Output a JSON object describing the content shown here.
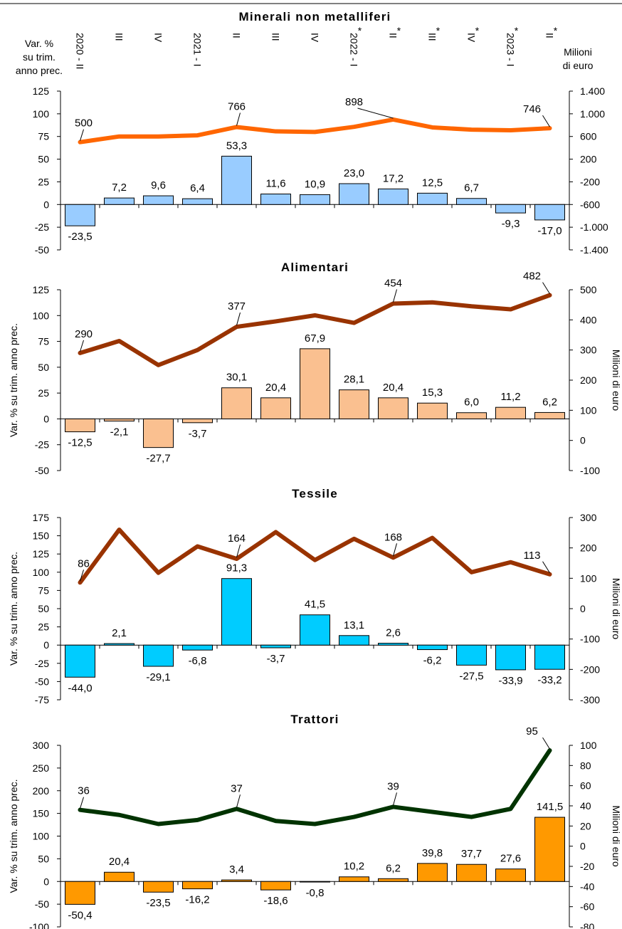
{
  "quarters": [
    {
      "label": "2020 - II",
      "star": ""
    },
    {
      "label": "III",
      "star": ""
    },
    {
      "label": "IV",
      "star": ""
    },
    {
      "label": "2021 - I",
      "star": ""
    },
    {
      "label": "II",
      "star": ""
    },
    {
      "label": "III",
      "star": ""
    },
    {
      "label": "IV",
      "star": ""
    },
    {
      "label": "2022 - I",
      "star": "*"
    },
    {
      "label": "II",
      "star": "*"
    },
    {
      "label": "III",
      "star": "*"
    },
    {
      "label": "IV",
      "star": "*"
    },
    {
      "label": "2023 - I",
      "star": "*"
    },
    {
      "label": "II",
      "star": "*"
    }
  ],
  "header": {
    "left_axis_title": [
      "Var. %",
      "su trim.",
      "anno prec."
    ],
    "right_axis_title": [
      "Milioni",
      "di euro"
    ]
  },
  "chart_data": [
    {
      "type": "bar",
      "title": "Minerali non metalliferi",
      "ylabel": "",
      "y2label": "",
      "ylim": [
        -50,
        125
      ],
      "yticks": [
        -50,
        -25,
        0,
        25,
        50,
        75,
        100,
        125
      ],
      "y2lim": [
        -1400,
        1400
      ],
      "y2ticks": [
        "1.400",
        "1.000",
        "600",
        "200",
        "-200",
        "-600",
        "-1.000",
        "-1.400"
      ],
      "bar_color": "#99CCFF",
      "line_color": "#FF6600",
      "bars": [
        -23.5,
        7.2,
        9.6,
        6.4,
        53.3,
        11.6,
        10.9,
        23.0,
        17.2,
        12.5,
        6.7,
        -9.3,
        -17.0
      ],
      "bar_labels": [
        "-23,5",
        "7,2",
        "9,6",
        "6,4",
        "53,3",
        "11,6",
        "10,9",
        "23,0",
        "17,2",
        "12,5",
        "6,7",
        "-9,3",
        "-17,0"
      ],
      "line": [
        500,
        600,
        600,
        620,
        766,
        690,
        680,
        770,
        898,
        760,
        720,
        710,
        746
      ],
      "line_labels": [
        {
          "i": 0,
          "text": "500"
        },
        {
          "i": 4,
          "text": "766"
        },
        {
          "i": 8,
          "text": "898"
        },
        {
          "i": 12,
          "text": "746"
        }
      ]
    },
    {
      "type": "bar",
      "title": "Alimentari",
      "ylabel": "Var. % su trim. anno prec.",
      "y2label": "Milioni di euro",
      "ylim": [
        -50,
        125
      ],
      "yticks": [
        -50,
        -25,
        0,
        25,
        50,
        75,
        100,
        125
      ],
      "y2lim": [
        -100,
        500
      ],
      "y2ticks": [
        "500",
        "400",
        "300",
        "200",
        "100",
        "0",
        "-100"
      ],
      "bar_color": "#FAC090",
      "line_color": "#993300",
      "bars": [
        -12.5,
        -2.1,
        -27.7,
        -3.7,
        30.1,
        20.4,
        67.9,
        28.1,
        20.4,
        15.3,
        6.0,
        11.2,
        6.2
      ],
      "bar_labels": [
        "-12,5",
        "-2,1",
        "-27,7",
        "-3,7",
        "30,1",
        "20,4",
        "67,9",
        "28,1",
        "20,4",
        "15,3",
        "6,0",
        "11,2",
        "6,2"
      ],
      "line": [
        290,
        330,
        250,
        300,
        377,
        395,
        415,
        390,
        454,
        458,
        445,
        435,
        482
      ],
      "line_labels": [
        {
          "i": 0,
          "text": "290"
        },
        {
          "i": 4,
          "text": "377"
        },
        {
          "i": 8,
          "text": "454"
        },
        {
          "i": 12,
          "text": "482"
        }
      ]
    },
    {
      "type": "bar",
      "title": "Tessile",
      "ylabel": "Var. % su trim. anno prec.",
      "y2label": "Milioni di euro",
      "ylim": [
        -75,
        175
      ],
      "yticks": [
        -75,
        -50,
        -25,
        0,
        25,
        50,
        75,
        100,
        125,
        150,
        175
      ],
      "y2lim": [
        -300,
        300
      ],
      "y2ticks": [
        "300",
        "200",
        "100",
        "0",
        "-100",
        "-200",
        "-300"
      ],
      "bar_color": "#00CCFF",
      "line_color": "#993300",
      "bars": [
        -44.0,
        2.1,
        -29.1,
        -6.8,
        91.3,
        -3.7,
        41.5,
        13.1,
        2.6,
        -6.2,
        -27.5,
        -33.9,
        -33.2
      ],
      "bar_labels": [
        "-44,0",
        "2,1",
        "-29,1",
        "-6,8",
        "91,3",
        "-3,7",
        "41,5",
        "13,1",
        "2,6",
        "-6,2",
        "-27,5",
        "-33,9",
        "-33,2"
      ],
      "line": [
        86,
        260,
        118,
        205,
        164,
        252,
        160,
        230,
        168,
        233,
        120,
        153,
        113
      ],
      "line_labels": [
        {
          "i": 0,
          "text": "86"
        },
        {
          "i": 4,
          "text": "164"
        },
        {
          "i": 8,
          "text": "168"
        },
        {
          "i": 12,
          "text": "113"
        }
      ]
    },
    {
      "type": "bar",
      "title": "Trattori",
      "ylabel": "Var. % su trim. anno prec.",
      "y2label": "Milioni di euro",
      "ylim": [
        -100,
        300
      ],
      "yticks": [
        -100,
        -50,
        0,
        50,
        100,
        150,
        200,
        250,
        300
      ],
      "y2lim": [
        -80,
        100
      ],
      "y2ticks": [
        "100",
        "80",
        "60",
        "40",
        "20",
        "0",
        "-20",
        "-40",
        "-60",
        "-80"
      ],
      "bar_color": "#FF9900",
      "line_color": "#003300",
      "bars": [
        -50.4,
        20.4,
        -23.5,
        -16.2,
        3.4,
        -18.6,
        -0.8,
        10.2,
        6.2,
        39.8,
        37.7,
        27.6,
        141.5
      ],
      "bar_labels": [
        "-50,4",
        "20,4",
        "-23,5",
        "-16,2",
        "3,4",
        "-18,6",
        "-0,8",
        "10,2",
        "6,2",
        "39,8",
        "37,7",
        "27,6",
        "141,5"
      ],
      "line": [
        36,
        31,
        22,
        26,
        37,
        25,
        22,
        29,
        39,
        34,
        29,
        37,
        95
      ],
      "line_labels": [
        {
          "i": 0,
          "text": "36"
        },
        {
          "i": 4,
          "text": "37"
        },
        {
          "i": 8,
          "text": "39"
        },
        {
          "i": 12,
          "text": "95"
        }
      ]
    }
  ]
}
